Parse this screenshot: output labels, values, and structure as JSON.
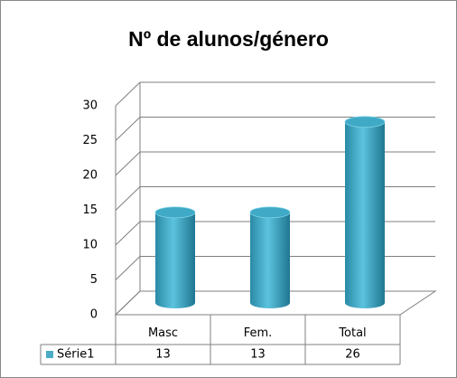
{
  "chart_data": {
    "type": "bar",
    "title": "Nº de alunos/género",
    "categories": [
      "Masc",
      "Fem.",
      "Total"
    ],
    "series": [
      {
        "name": "Série1",
        "color": "#4bacc6",
        "values": [
          13,
          13,
          26
        ]
      }
    ],
    "ylim": [
      0,
      30
    ],
    "yticks": [
      0,
      5,
      10,
      15,
      20,
      25,
      30
    ],
    "grid": true
  }
}
